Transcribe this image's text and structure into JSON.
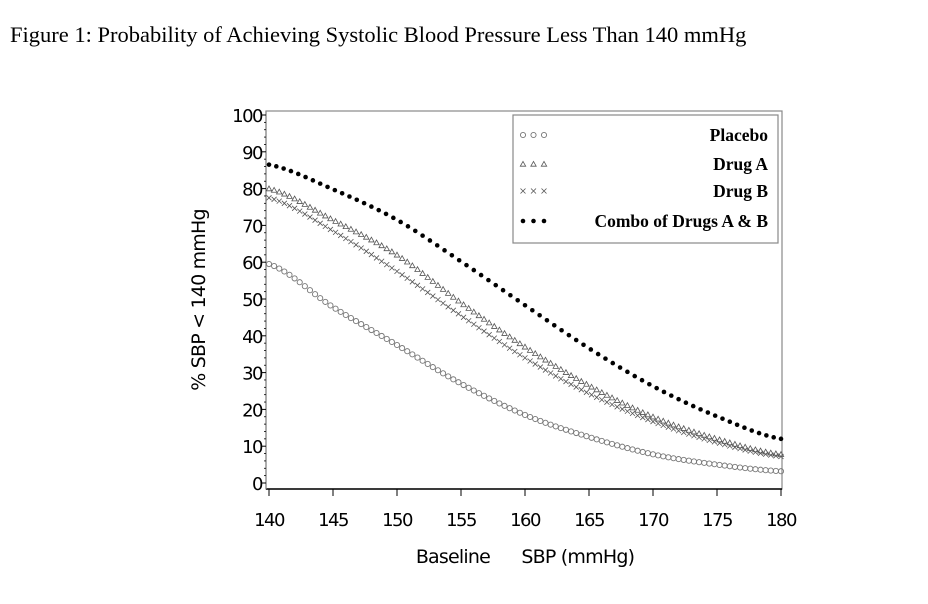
{
  "chart_data": {
    "type": "scatter",
    "title": "Figure 1:  Probability of Achieving Systolic Blood Pressure Less Than 140 mmHg",
    "xlabel": "Baseline      SBP (mmHg)",
    "ylabel": "% SBP < 140 mmHg",
    "xlim": [
      140,
      180
    ],
    "ylim": [
      0,
      100
    ],
    "xticks": [
      "140",
      "145",
      "150",
      "155",
      "160",
      "165",
      "170",
      "175",
      "180"
    ],
    "yticks": [
      "0",
      "10",
      "20",
      "30",
      "40",
      "50",
      "60",
      "70",
      "80",
      "90",
      "100"
    ],
    "grid": false,
    "legend_position": "top-right",
    "x": [
      140,
      145,
      150,
      155,
      160,
      165,
      170,
      175,
      180
    ],
    "series": [
      {
        "name": "Placebo",
        "marker": "circle",
        "color": "#777777",
        "values": [
          59.5,
          47.8,
          37.5,
          27,
          18.5,
          12.5,
          7.8,
          5,
          3.2
        ]
      },
      {
        "name": "Drug A",
        "marker": "triangle",
        "color": "#555555",
        "values": [
          80,
          71.5,
          62,
          49,
          37,
          26.5,
          18,
          12,
          7.8
        ]
      },
      {
        "name": "Drug B",
        "marker": "x",
        "color": "#555555",
        "values": [
          77.5,
          68.5,
          57.5,
          45.5,
          34,
          24.3,
          16.7,
          11,
          7.2
        ]
      },
      {
        "name": "Combo of Drugs A & B",
        "marker": "dot",
        "color": "#000000",
        "values": [
          86.5,
          79.8,
          71.5,
          60.2,
          48.3,
          36.6,
          26.3,
          18.1,
          12
        ]
      }
    ]
  }
}
